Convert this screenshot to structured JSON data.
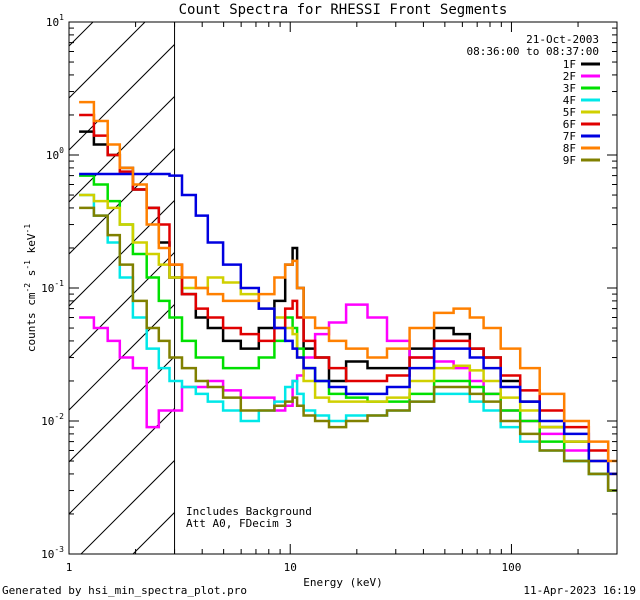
{
  "chart_data": {
    "type": "line",
    "title": "Count Spectra for RHESSI Front Segments",
    "xlabel": "Energy (keV)",
    "ylabel": "counts cm-2 s-1 keV-1",
    "ylabel_parts": {
      "base": "counts cm",
      "exp1": "-2",
      "mid1": " s",
      "exp2": "-1",
      "mid2": " keV",
      "exp3": "-1"
    },
    "xscale": "log",
    "yscale": "log",
    "xlim": [
      1,
      300
    ],
    "ylim": [
      0.001,
      10
    ],
    "y_ticks": [
      {
        "base": "10",
        "exp": "-3"
      },
      {
        "base": "10",
        "exp": "-2"
      },
      {
        "base": "10",
        "exp": "-1"
      },
      {
        "base": "10",
        "exp": "0"
      },
      {
        "base": "10",
        "exp": "1"
      }
    ],
    "x_ticks": [
      "1",
      "10",
      "100"
    ],
    "date": "21-Oct-2003",
    "time_range": "08:36:00 to 08:37:00",
    "hatched_region_max_kev": 3,
    "annotations": [
      "Includes Background",
      "Att A0, FDecim 3"
    ],
    "legend_position": "top-right",
    "series": [
      {
        "name": "1F",
        "color": "#000000",
        "x": [
          1.2,
          1.4,
          1.6,
          1.8,
          2.1,
          2.4,
          2.7,
          3.0,
          3.5,
          4.0,
          4.5,
          5.5,
          6.5,
          8,
          9,
          10,
          10.5,
          11,
          12,
          14,
          16,
          20,
          25,
          30,
          40,
          50,
          60,
          70,
          80,
          100,
          120,
          150,
          200,
          250,
          300
        ],
        "values": [
          1.5,
          1.2,
          1.0,
          0.8,
          0.55,
          0.4,
          0.22,
          0.12,
          0.09,
          0.06,
          0.05,
          0.04,
          0.035,
          0.05,
          0.08,
          0.15,
          0.2,
          0.1,
          0.035,
          0.03,
          0.02,
          0.028,
          0.025,
          0.025,
          0.035,
          0.05,
          0.045,
          0.035,
          0.03,
          0.02,
          0.014,
          0.009,
          0.007,
          0.004,
          0.003
        ]
      },
      {
        "name": "2F",
        "color": "#ff00ff",
        "x": [
          1.2,
          1.4,
          1.6,
          1.8,
          2.1,
          2.4,
          2.7,
          3.0,
          3.5,
          4.0,
          4.5,
          5.5,
          6.5,
          8,
          9,
          10,
          10.5,
          11,
          12,
          14,
          16,
          20,
          25,
          30,
          40,
          50,
          60,
          70,
          80,
          100,
          120,
          150,
          200,
          250,
          300
        ],
        "values": [
          0.06,
          0.05,
          0.04,
          0.03,
          0.025,
          0.009,
          0.012,
          0.012,
          0.018,
          0.018,
          0.02,
          0.017,
          0.015,
          0.015,
          0.012,
          0.013,
          0.02,
          0.022,
          0.03,
          0.045,
          0.055,
          0.075,
          0.06,
          0.04,
          0.03,
          0.028,
          0.025,
          0.02,
          0.016,
          0.012,
          0.01,
          0.008,
          0.006,
          0.005,
          0.003
        ]
      },
      {
        "name": "3F",
        "color": "#00e000",
        "x": [
          1.2,
          1.4,
          1.6,
          1.8,
          2.1,
          2.4,
          2.7,
          3.0,
          3.5,
          4.0,
          4.5,
          5.5,
          6.5,
          8,
          9,
          10,
          10.5,
          11,
          12,
          14,
          16,
          20,
          25,
          30,
          40,
          50,
          60,
          70,
          80,
          100,
          120,
          150,
          200,
          250,
          300
        ],
        "values": [
          0.7,
          0.6,
          0.45,
          0.3,
          0.18,
          0.12,
          0.08,
          0.06,
          0.04,
          0.03,
          0.03,
          0.025,
          0.025,
          0.03,
          0.04,
          0.06,
          0.05,
          0.035,
          0.025,
          0.02,
          0.016,
          0.015,
          0.014,
          0.014,
          0.016,
          0.02,
          0.02,
          0.018,
          0.016,
          0.012,
          0.01,
          0.007,
          0.005,
          0.004,
          0.003
        ]
      },
      {
        "name": "4F",
        "color": "#00e8e8",
        "x": [
          1.2,
          1.4,
          1.6,
          1.8,
          2.1,
          2.4,
          2.7,
          3.0,
          3.5,
          4.0,
          4.5,
          5.5,
          6.5,
          8,
          9,
          10,
          10.5,
          11,
          12,
          14,
          16,
          20,
          25,
          30,
          40,
          50,
          60,
          70,
          80,
          100,
          120,
          150,
          200,
          250,
          300
        ],
        "values": [
          0.5,
          0.35,
          0.22,
          0.12,
          0.06,
          0.035,
          0.025,
          0.02,
          0.018,
          0.016,
          0.014,
          0.012,
          0.01,
          0.012,
          0.014,
          0.018,
          0.02,
          0.016,
          0.012,
          0.011,
          0.01,
          0.011,
          0.011,
          0.012,
          0.014,
          0.016,
          0.016,
          0.014,
          0.012,
          0.009,
          0.007,
          0.006,
          0.005,
          0.004,
          0.003
        ]
      },
      {
        "name": "5F",
        "color": "#d0d000",
        "x": [
          1.2,
          1.4,
          1.6,
          1.8,
          2.1,
          2.4,
          2.7,
          3.0,
          3.5,
          4.0,
          4.5,
          5.5,
          6.5,
          8,
          9,
          10,
          10.5,
          11,
          12,
          14,
          16,
          20,
          25,
          30,
          40,
          50,
          60,
          70,
          80,
          100,
          120,
          150,
          200,
          250,
          300
        ],
        "values": [
          0.5,
          0.45,
          0.4,
          0.3,
          0.22,
          0.18,
          0.15,
          0.12,
          0.1,
          0.1,
          0.12,
          0.11,
          0.09,
          0.07,
          0.06,
          0.05,
          0.045,
          0.03,
          0.02,
          0.015,
          0.014,
          0.014,
          0.014,
          0.015,
          0.02,
          0.025,
          0.026,
          0.024,
          0.02,
          0.015,
          0.012,
          0.009,
          0.007,
          0.005,
          0.004
        ]
      },
      {
        "name": "6F",
        "color": "#e00000",
        "x": [
          1.2,
          1.4,
          1.6,
          1.8,
          2.1,
          2.4,
          2.7,
          3.0,
          3.5,
          4.0,
          4.5,
          5.5,
          6.5,
          8,
          9,
          10,
          10.5,
          11,
          12,
          14,
          16,
          20,
          25,
          30,
          40,
          50,
          60,
          70,
          80,
          100,
          120,
          150,
          200,
          250,
          300
        ],
        "values": [
          2.0,
          1.4,
          1.0,
          0.75,
          0.55,
          0.4,
          0.3,
          0.15,
          0.09,
          0.07,
          0.06,
          0.05,
          0.045,
          0.04,
          0.05,
          0.07,
          0.08,
          0.06,
          0.04,
          0.03,
          0.025,
          0.02,
          0.02,
          0.022,
          0.03,
          0.04,
          0.04,
          0.035,
          0.03,
          0.022,
          0.017,
          0.012,
          0.009,
          0.006,
          0.004
        ]
      },
      {
        "name": "7F",
        "color": "#0000e0",
        "x": [
          1.2,
          1.4,
          1.6,
          1.8,
          2.1,
          2.4,
          2.7,
          3.0,
          3.5,
          4.0,
          4.5,
          5.5,
          6.5,
          8,
          9,
          10,
          10.5,
          11,
          12,
          14,
          16,
          20,
          25,
          30,
          40,
          50,
          60,
          70,
          80,
          100,
          120,
          150,
          200,
          250,
          300
        ],
        "values": [
          0.72,
          0.72,
          0.72,
          0.72,
          0.72,
          0.72,
          0.72,
          0.7,
          0.5,
          0.35,
          0.22,
          0.15,
          0.1,
          0.07,
          0.05,
          0.04,
          0.035,
          0.03,
          0.025,
          0.02,
          0.018,
          0.016,
          0.016,
          0.018,
          0.025,
          0.035,
          0.035,
          0.03,
          0.025,
          0.018,
          0.014,
          0.01,
          0.008,
          0.005,
          0.004
        ]
      },
      {
        "name": "8F",
        "color": "#ff8000",
        "x": [
          1.2,
          1.4,
          1.6,
          1.8,
          2.1,
          2.4,
          2.7,
          3.0,
          3.5,
          4.0,
          4.5,
          5.5,
          6.5,
          8,
          9,
          10,
          10.5,
          11,
          12,
          14,
          16,
          20,
          25,
          30,
          40,
          50,
          60,
          70,
          80,
          100,
          120,
          150,
          200,
          250,
          300
        ],
        "values": [
          2.5,
          1.8,
          1.2,
          0.8,
          0.6,
          0.3,
          0.2,
          0.15,
          0.12,
          0.1,
          0.09,
          0.08,
          0.08,
          0.09,
          0.12,
          0.15,
          0.16,
          0.1,
          0.06,
          0.05,
          0.04,
          0.035,
          0.03,
          0.035,
          0.05,
          0.065,
          0.07,
          0.06,
          0.05,
          0.035,
          0.025,
          0.016,
          0.01,
          0.007,
          0.005
        ]
      },
      {
        "name": "9F",
        "color": "#808000",
        "x": [
          1.2,
          1.4,
          1.6,
          1.8,
          2.1,
          2.4,
          2.7,
          3.0,
          3.5,
          4.0,
          4.5,
          5.5,
          6.5,
          8,
          9,
          10,
          10.5,
          11,
          12,
          14,
          16,
          20,
          25,
          30,
          40,
          50,
          60,
          70,
          80,
          100,
          120,
          150,
          200,
          250,
          300
        ],
        "values": [
          0.4,
          0.35,
          0.25,
          0.15,
          0.08,
          0.05,
          0.04,
          0.03,
          0.025,
          0.02,
          0.018,
          0.015,
          0.012,
          0.012,
          0.013,
          0.014,
          0.015,
          0.013,
          0.011,
          0.01,
          0.009,
          0.01,
          0.011,
          0.012,
          0.014,
          0.018,
          0.018,
          0.016,
          0.014,
          0.01,
          0.008,
          0.006,
          0.005,
          0.004,
          0.003
        ]
      }
    ]
  },
  "footer": {
    "generated_by": "Generated by hsi_min_spectra_plot.pro",
    "plot_date": "11-Apr-2023 16:19"
  }
}
